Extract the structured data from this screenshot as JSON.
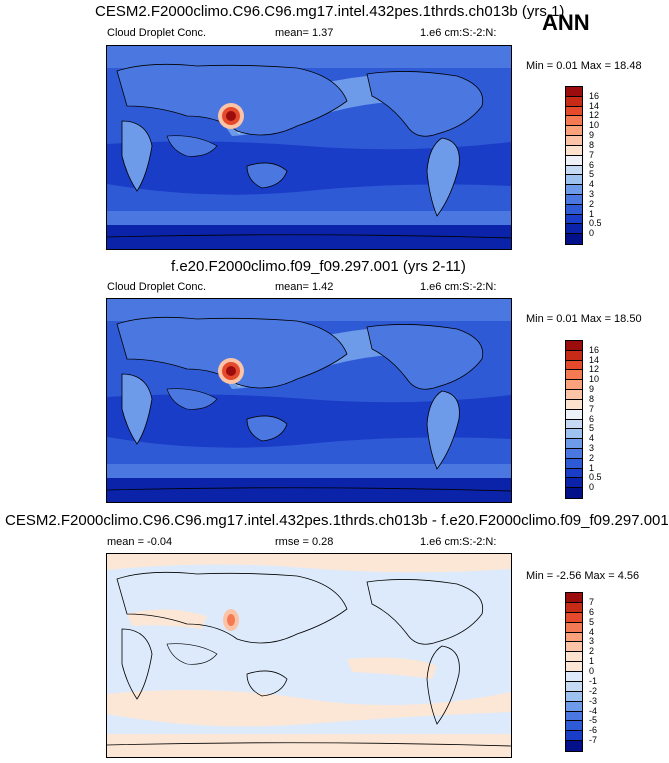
{
  "season": "ANN",
  "panels": [
    {
      "title": "CESM2.F2000climo.C96.C96.mg17.intel.432pes.1thrds.ch013b (yrs 1)",
      "left_label": "Cloud Droplet Conc.",
      "center_label": "mean=  1.37",
      "right_label": "1.e6 cm:S:-2:N:",
      "minmax": "Min =  0.01 Max = 18.48",
      "levels": [
        "16",
        "14",
        "12",
        "10",
        "9",
        "8",
        "7",
        "6",
        "5",
        "4",
        "3",
        "2",
        "1",
        "0.5",
        "0"
      ],
      "colors": [
        "#9b0d0d",
        "#c62b17",
        "#e44a2b",
        "#f37a52",
        "#f9a27c",
        "#fbc4a6",
        "#fde2cd",
        "#eef1f7",
        "#c6dbf3",
        "#9ec2f0",
        "#6d9ae9",
        "#4a78e0",
        "#2f5ad6",
        "#1a3dc7",
        "#0b23a8",
        "#02108a"
      ],
      "scheme": "pos"
    },
    {
      "title": "f.e20.F2000climo.f09_f09.297.001 (yrs 2-11)",
      "left_label": "Cloud Droplet Conc.",
      "center_label": "mean=  1.42",
      "right_label": "1.e6 cm:S:-2:N:",
      "minmax": "Min =  0.01 Max = 18.50",
      "levels": [
        "16",
        "14",
        "12",
        "10",
        "9",
        "8",
        "7",
        "6",
        "5",
        "4",
        "3",
        "2",
        "1",
        "0.5",
        "0"
      ],
      "colors": [
        "#9b0d0d",
        "#c62b17",
        "#e44a2b",
        "#f37a52",
        "#f9a27c",
        "#fbc4a6",
        "#fde2cd",
        "#eef1f7",
        "#c6dbf3",
        "#9ec2f0",
        "#6d9ae9",
        "#4a78e0",
        "#2f5ad6",
        "#1a3dc7",
        "#0b23a8",
        "#02108a"
      ],
      "scheme": "pos"
    },
    {
      "title": "CESM2.F2000climo.C96.C96.mg17.intel.432pes.1thrds.ch013b - f.e20.F2000climo.f09_f09.297.001",
      "left_label": "mean =  -0.04",
      "center_label": "rmse =  0.28",
      "right_label": "1.e6 cm:S:-2:N:",
      "minmax": "Min = -2.56 Max =  4.56",
      "levels": [
        "7",
        "6",
        "5",
        "4",
        "3",
        "2",
        "1",
        "0",
        "-1",
        "-2",
        "-3",
        "-4",
        "-5",
        "-6",
        "-7"
      ],
      "colors": [
        "#9b0d0d",
        "#c62b17",
        "#e44a2b",
        "#f37a52",
        "#f9a27c",
        "#fbc4a6",
        "#fde2cd",
        "#fce7d6",
        "#dceafb",
        "#c6dbf3",
        "#9ec2f0",
        "#6d9ae9",
        "#4a78e0",
        "#2f5ad6",
        "#1a3dc7",
        "#02108a"
      ],
      "scheme": "diff"
    }
  ]
}
